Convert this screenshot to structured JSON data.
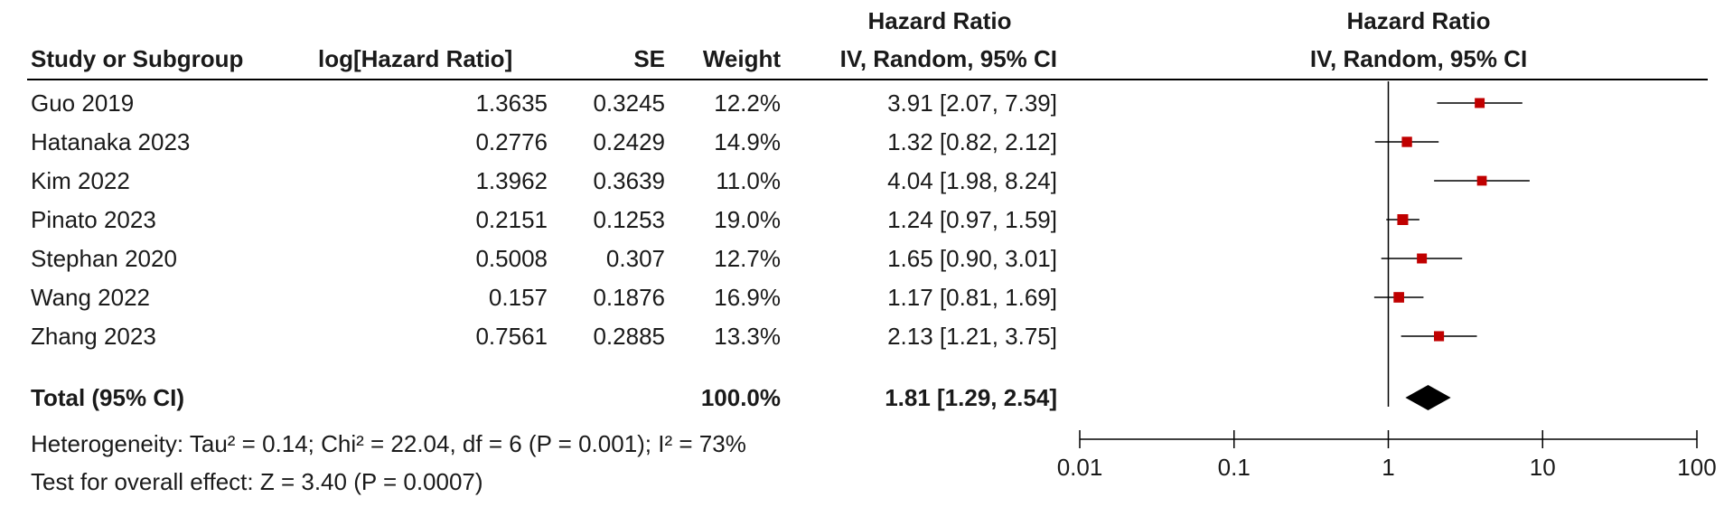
{
  "headers": {
    "study": "Study or Subgroup",
    "loghr": "log[Hazard Ratio]",
    "se": "SE",
    "weight": "Weight",
    "hr_line1": "Hazard Ratio",
    "hr_line2": "IV, Random, 95% CI",
    "plot_line1": "Hazard Ratio",
    "plot_line2": "IV, Random, 95% CI"
  },
  "studies": [
    {
      "name": "Guo 2019",
      "loghr": "1.3635",
      "se": "0.3245",
      "weight": "12.2%",
      "ci_text": "3.91 [2.07, 7.39]"
    },
    {
      "name": "Hatanaka 2023",
      "loghr": "0.2776",
      "se": "0.2429",
      "weight": "14.9%",
      "ci_text": "1.32 [0.82, 2.12]"
    },
    {
      "name": "Kim 2022",
      "loghr": "1.3962",
      "se": "0.3639",
      "weight": "11.0%",
      "ci_text": "4.04 [1.98, 8.24]"
    },
    {
      "name": "Pinato 2023",
      "loghr": "0.2151",
      "se": "0.1253",
      "weight": "19.0%",
      "ci_text": "1.24 [0.97, 1.59]"
    },
    {
      "name": "Stephan 2020",
      "loghr": "0.5008",
      "se": "0.307",
      "weight": "12.7%",
      "ci_text": "1.65 [0.90, 3.01]"
    },
    {
      "name": "Wang 2022",
      "loghr": "0.157",
      "se": "0.1876",
      "weight": "16.9%",
      "ci_text": "1.17 [0.81, 1.69]"
    },
    {
      "name": "Zhang 2023",
      "loghr": "0.7561",
      "se": "0.2885",
      "weight": "13.3%",
      "ci_text": "2.13 [1.21, 3.75]"
    }
  ],
  "total": {
    "label": "Total (95% CI)",
    "weight": "100.0%",
    "ci_text": "1.81 [1.29, 2.54]"
  },
  "footer": {
    "heterogeneity": "Heterogeneity: Tau² = 0.14; Chi² = 22.04, df = 6 (P = 0.001); I² = 73%",
    "overall": "Test for overall effect: Z = 3.40 (P = 0.0007)"
  },
  "colors": {
    "marker": "#c00000",
    "line": "#000000",
    "text": "#1a1a1a"
  },
  "chart_data": {
    "type": "forest",
    "scale": "log",
    "xlim": [
      0.01,
      100
    ],
    "ticks": [
      0.01,
      0.1,
      1,
      10,
      100
    ],
    "tick_labels": [
      "0.01",
      "0.1",
      "1",
      "10",
      "100"
    ],
    "null_line": 1,
    "studies": [
      {
        "name": "Guo 2019",
        "hr": 3.91,
        "lower": 2.07,
        "upper": 7.39,
        "weight": 12.2
      },
      {
        "name": "Hatanaka 2023",
        "hr": 1.32,
        "lower": 0.82,
        "upper": 2.12,
        "weight": 14.9
      },
      {
        "name": "Kim 2022",
        "hr": 4.04,
        "lower": 1.98,
        "upper": 8.24,
        "weight": 11.0
      },
      {
        "name": "Pinato 2023",
        "hr": 1.24,
        "lower": 0.97,
        "upper": 1.59,
        "weight": 19.0
      },
      {
        "name": "Stephan 2020",
        "hr": 1.65,
        "lower": 0.9,
        "upper": 3.01,
        "weight": 12.7
      },
      {
        "name": "Wang 2022",
        "hr": 1.17,
        "lower": 0.81,
        "upper": 1.69,
        "weight": 16.9
      },
      {
        "name": "Zhang 2023",
        "hr": 2.13,
        "lower": 1.21,
        "upper": 3.75,
        "weight": 13.3
      }
    ],
    "pooled": {
      "hr": 1.81,
      "lower": 1.29,
      "upper": 2.54
    }
  }
}
